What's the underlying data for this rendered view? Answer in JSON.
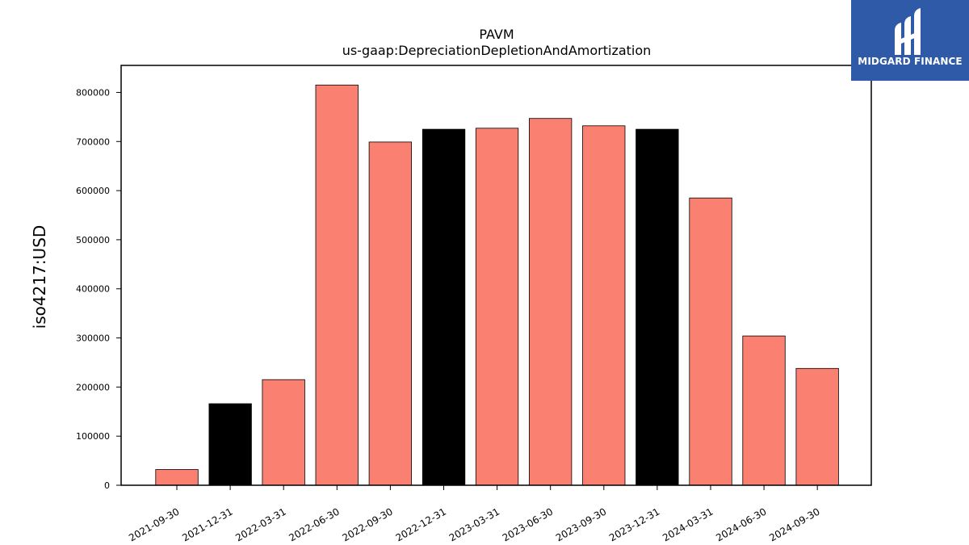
{
  "chart_data": {
    "type": "bar",
    "title": "PAVM",
    "subtitle": "us-gaap:DepreciationDepletionAndAmortization",
    "ylabel": "iso4217:USD",
    "xlabel": "",
    "categories": [
      "2021-09-30",
      "2021-12-31",
      "2022-03-31",
      "2022-06-30",
      "2022-09-30",
      "2022-12-31",
      "2023-03-31",
      "2023-06-30",
      "2023-09-30",
      "2023-12-31",
      "2024-03-31",
      "2024-06-30",
      "2024-09-30"
    ],
    "values": [
      32000,
      166000,
      215000,
      815000,
      699000,
      725000,
      727000,
      747000,
      732000,
      725000,
      585000,
      304000,
      238000
    ],
    "bar_colors": [
      "#fa8072",
      "#000000",
      "#fa8072",
      "#fa8072",
      "#fa8072",
      "#000000",
      "#fa8072",
      "#fa8072",
      "#fa8072",
      "#000000",
      "#fa8072",
      "#fa8072",
      "#fa8072"
    ],
    "yticks": [
      0,
      100000,
      200000,
      300000,
      400000,
      500000,
      600000,
      700000,
      800000
    ],
    "ylim": [
      0,
      855000
    ],
    "grid": false
  },
  "logo": {
    "text": "MIDGARD FINANCE",
    "background": "#2f5aa8"
  }
}
